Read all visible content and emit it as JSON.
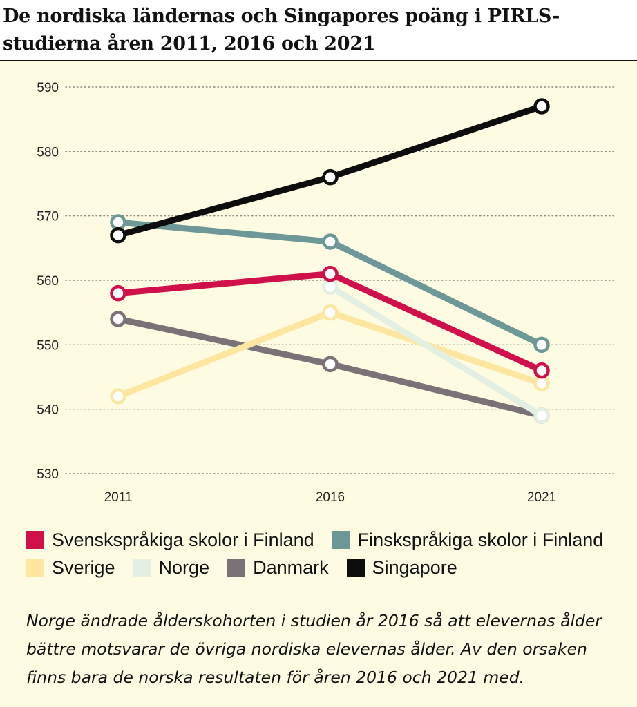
{
  "title": "De nordiska ländernas och Singapores poäng i PIRLS-studierna åren 2011, 2016 och 2021",
  "chart_data": {
    "type": "line",
    "x": [
      "2011",
      "2016",
      "2021"
    ],
    "ylim": [
      530,
      590
    ],
    "yticks": [
      530,
      540,
      550,
      560,
      570,
      580,
      590
    ],
    "grid": true,
    "series": [
      {
        "name": "Danmark",
        "color": "#7a7277",
        "values": [
          554,
          547,
          539
        ]
      },
      {
        "name": "Sverige",
        "color": "#fde6a0",
        "values": [
          542,
          555,
          544
        ]
      },
      {
        "name": "Norge",
        "color": "#e4efe3",
        "values": [
          null,
          559,
          539
        ]
      },
      {
        "name": "Finskspråkiga skolor i Finland",
        "color": "#6e9898",
        "values": [
          569,
          566,
          550
        ]
      },
      {
        "name": "Svenskspråkiga skolor i Finland",
        "color": "#d0104a",
        "values": [
          558,
          561,
          546
        ]
      },
      {
        "name": "Singapore",
        "color": "#0d0d0d",
        "values": [
          567,
          576,
          587
        ]
      }
    ],
    "legend": {
      "rows": [
        [
          {
            "label": "Svenskspråkiga skolor i Finland",
            "color": "#d0104a"
          },
          {
            "label": "Finskspråkiga skolor i Finland",
            "color": "#6e9898"
          }
        ],
        [
          {
            "label": "Sverige",
            "color": "#fde6a0"
          },
          {
            "label": "Norge",
            "color": "#e4efe3"
          },
          {
            "label": "Danmark",
            "color": "#7a7277"
          },
          {
            "label": "Singapore",
            "color": "#0d0d0d"
          }
        ]
      ]
    }
  },
  "note": "Norge ändrade ålderskohorten i studien år 2016 så att elevernas ålder bättre motsvarar de övriga nordiska elevernas ålder. Av den orsaken finns bara de norska resultaten för åren 2016 och 2021 med."
}
